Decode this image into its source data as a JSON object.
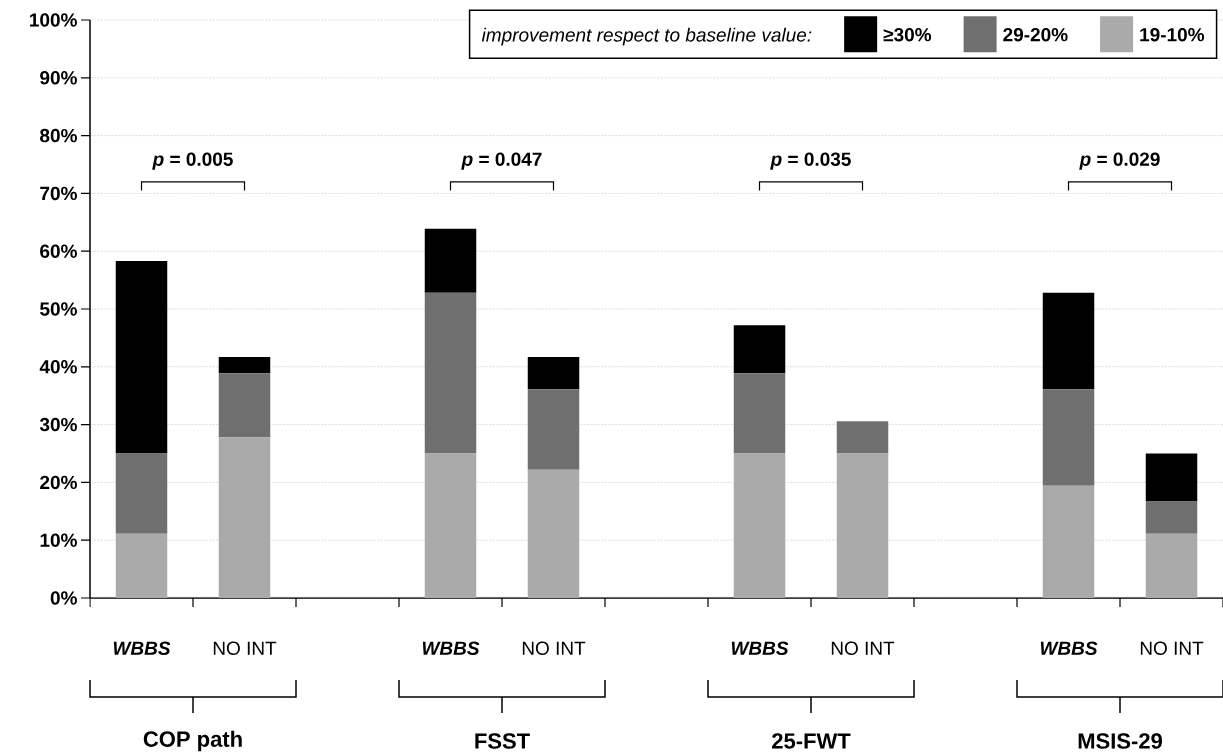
{
  "chart_data": {
    "type": "bar",
    "stacked": true,
    "categories": [
      "WBBS",
      "NO INT",
      null,
      "WBBS",
      "NO INT",
      null,
      "WBBS",
      "NO INT",
      null,
      "WBBS",
      "NO INT"
    ],
    "legend_title": "improvement respect to baseline value:",
    "series": [
      {
        "name": "19-10%",
        "color": "#aaaaaa",
        "values": [
          11.1,
          27.8,
          null,
          25,
          22.2,
          null,
          25,
          25,
          null,
          19.4,
          11.1
        ]
      },
      {
        "name": "29-20%",
        "color": "#6f6f6f",
        "values": [
          13.9,
          11.1,
          null,
          27.8,
          13.9,
          null,
          13.9,
          5.6,
          null,
          16.7,
          5.6
        ]
      },
      {
        "name": "≥30%",
        "color": "#000000",
        "values": [
          33.3,
          2.8,
          null,
          11.1,
          5.6,
          null,
          8.3,
          0,
          null,
          16.7,
          8.3
        ]
      }
    ],
    "ylim": [
      0,
      100
    ],
    "yticks": [
      {
        "value": 0,
        "label": "0%"
      },
      {
        "value": 10,
        "label": "10%"
      },
      {
        "value": 20,
        "label": "20%"
      },
      {
        "value": 30,
        "label": "30%"
      },
      {
        "value": 40,
        "label": "40%"
      },
      {
        "value": 50,
        "label": "50%"
      },
      {
        "value": 60,
        "label": "60%"
      },
      {
        "value": 70,
        "label": "70%"
      },
      {
        "value": 80,
        "label": "80%"
      },
      {
        "value": 90,
        "label": "90%"
      },
      {
        "value": 100,
        "label": "100%"
      }
    ],
    "grid": "y",
    "legend": "top right",
    "annotations": [
      "*p* = 0.005",
      "*p* = 0.047",
      "*p* = 0.035",
      "*p* = 0.029",
      "COP path",
      "FSST",
      "25-FWT",
      "MSIS-29"
    ]
  }
}
